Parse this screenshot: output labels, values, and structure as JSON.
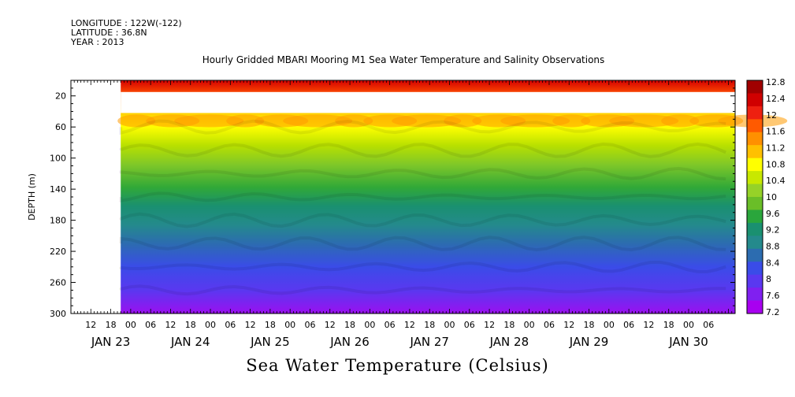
{
  "header": {
    "longitude": "LONGITUDE : 122W(-122)",
    "latitude": "LATITUDE : 36.8N",
    "year": "YEAR : 2013"
  },
  "chart_data": {
    "type": "heatmap",
    "title": "Hourly Gridded MBARI Mooring M1 Sea Water Temperature and Salinity Observations",
    "xlabel": "Sea Water Temperature (Celsius)",
    "ylabel": "DEPTH (m)",
    "ylim": [
      300,
      0
    ],
    "y_ticks": [
      "20",
      "60",
      "100",
      "140",
      "180",
      "220",
      "260",
      "300"
    ],
    "y_tick_values": [
      20,
      60,
      100,
      140,
      180,
      220,
      260,
      300
    ],
    "x_hour_ticks": [
      "12",
      "18",
      "00",
      "06",
      "12",
      "18",
      "00",
      "06",
      "12",
      "18",
      "00",
      "06",
      "12",
      "18",
      "00",
      "06",
      "12",
      "18",
      "00",
      "06",
      "12",
      "18",
      "00",
      "06",
      "12",
      "18",
      "00",
      "06",
      "12",
      "18",
      "00",
      "06"
    ],
    "x_day_labels": [
      "JAN 23",
      "JAN 24",
      "JAN 25",
      "JAN 26",
      "JAN 27",
      "JAN 28",
      "JAN 29",
      "JAN 30"
    ],
    "x_range_hours": [
      0,
      200
    ],
    "data_start_hour": 15,
    "colorbar": {
      "labels": [
        "12.8",
        "12.4",
        "12",
        "11.6",
        "11.2",
        "10.8",
        "10.4",
        "10",
        "9.6",
        "9.2",
        "8.8",
        "8.4",
        "8",
        "7.6",
        "7.2"
      ],
      "levels": [
        12.8,
        12.4,
        12.0,
        11.6,
        11.2,
        10.8,
        10.4,
        10.0,
        9.6,
        9.2,
        8.8,
        8.4,
        8.0,
        7.6,
        7.2
      ],
      "colors": [
        "#a00000",
        "#d00000",
        "#ee2010",
        "#ff5a00",
        "#ff9000",
        "#ffc000",
        "#ffff00",
        "#c8e800",
        "#96d228",
        "#6abe28",
        "#2aa63c",
        "#1a9070",
        "#248a8c",
        "#2c6cb0",
        "#3a4ce8",
        "#5a38f0",
        "#8020f0",
        "#a800f0"
      ]
    },
    "series": [
      {
        "name": "",
        "depth_m": 10,
        "temp_c": 11.8
      },
      {
        "name": "",
        "depth_m": 40,
        "temp_c": 11.0
      },
      {
        "name": "",
        "depth_m": 60,
        "temp_c": 10.2
      },
      {
        "name": "",
        "depth_m": 100,
        "temp_c": 9.6
      },
      {
        "name": "",
        "depth_m": 140,
        "temp_c": 9.0
      },
      {
        "name": "",
        "depth_m": 180,
        "temp_c": 8.5
      },
      {
        "name": "",
        "depth_m": 220,
        "temp_c": 8.0
      },
      {
        "name": "",
        "depth_m": 260,
        "temp_c": 7.7
      },
      {
        "name": "",
        "depth_m": 300,
        "temp_c": 7.3
      }
    ],
    "missing_band_m": [
      15,
      42
    ]
  }
}
